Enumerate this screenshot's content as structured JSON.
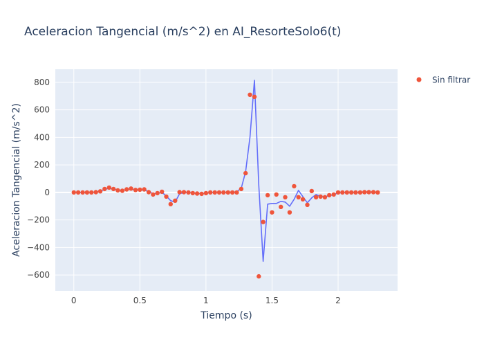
{
  "chart_data": {
    "type": "scatter",
    "title": "Aceleracion Tangencial (m/s^2) en AI_ResorteSolo6(t)",
    "xlabel": "Tiempo (s)",
    "ylabel": "Aceleracion Tangencial (m/s^2)",
    "xlim": [
      -0.14,
      2.45
    ],
    "ylim": [
      -715,
      895
    ],
    "x_ticks": [
      0,
      0.5,
      1,
      1.5,
      2
    ],
    "x_tick_labels": [
      "0",
      "0.5",
      "1",
      "1.5",
      "2"
    ],
    "y_ticks": [
      -600,
      -400,
      -200,
      0,
      200,
      400,
      600,
      800
    ],
    "y_tick_labels": [
      "−600",
      "−400",
      "−200",
      "0",
      "200",
      "400",
      "600",
      "800"
    ],
    "grid": true,
    "legend_position": "top-right",
    "colors": {
      "plot_bg": "#e5ecf6",
      "grid": "#ffffff",
      "markers": "#ef553b",
      "line": "#636efa",
      "text": "#2a3f5f",
      "tick_text": "#444444"
    },
    "series": [
      {
        "name": "Sin filtrar",
        "mode": "markers",
        "x": [
          0.0,
          0.033,
          0.067,
          0.1,
          0.133,
          0.167,
          0.2,
          0.233,
          0.267,
          0.3,
          0.333,
          0.367,
          0.4,
          0.433,
          0.467,
          0.5,
          0.533,
          0.567,
          0.6,
          0.633,
          0.667,
          0.7,
          0.733,
          0.767,
          0.8,
          0.833,
          0.867,
          0.9,
          0.933,
          0.967,
          1.0,
          1.033,
          1.067,
          1.1,
          1.133,
          1.167,
          1.2,
          1.233,
          1.267,
          1.3,
          1.333,
          1.367,
          1.4,
          1.433,
          1.467,
          1.5,
          1.533,
          1.567,
          1.6,
          1.633,
          1.667,
          1.7,
          1.733,
          1.767,
          1.8,
          1.833,
          1.867,
          1.9,
          1.933,
          1.967,
          2.0,
          2.033,
          2.067,
          2.1,
          2.133,
          2.167,
          2.2,
          2.233,
          2.267,
          2.3
        ],
        "y": [
          0,
          0,
          0,
          0,
          0,
          2,
          8,
          25,
          35,
          25,
          15,
          12,
          22,
          28,
          18,
          20,
          22,
          2,
          -15,
          -5,
          5,
          -30,
          -85,
          -60,
          2,
          2,
          0,
          -5,
          -8,
          -10,
          -5,
          0,
          0,
          0,
          0,
          0,
          0,
          0,
          25,
          140,
          710,
          695,
          -610,
          -215,
          -20,
          -145,
          -15,
          -105,
          -35,
          -145,
          45,
          -35,
          -50,
          -90,
          10,
          -35,
          -30,
          -35,
          -20,
          -15,
          0,
          0,
          0,
          0,
          0,
          0,
          2,
          2,
          2,
          0
        ]
      },
      {
        "mode": "lines",
        "x": [
          0.0,
          0.033,
          0.067,
          0.1,
          0.133,
          0.167,
          0.2,
          0.233,
          0.267,
          0.3,
          0.333,
          0.367,
          0.4,
          0.433,
          0.467,
          0.5,
          0.533,
          0.567,
          0.6,
          0.633,
          0.667,
          0.7,
          0.733,
          0.767,
          0.8,
          0.833,
          0.867,
          0.9,
          0.933,
          0.967,
          1.0,
          1.033,
          1.067,
          1.1,
          1.133,
          1.167,
          1.2,
          1.233,
          1.267,
          1.3,
          1.333,
          1.367,
          1.4,
          1.433,
          1.467,
          1.5,
          1.533,
          1.567,
          1.6,
          1.633,
          1.667,
          1.7,
          1.733,
          1.767,
          1.8,
          1.833,
          1.867,
          1.9,
          1.933,
          1.967,
          2.0,
          2.033,
          2.067,
          2.1,
          2.133,
          2.167,
          2.2,
          2.233,
          2.267,
          2.3
        ],
        "y": [
          0,
          0,
          0,
          0,
          0,
          2,
          8,
          22,
          30,
          25,
          18,
          15,
          20,
          24,
          18,
          18,
          18,
          5,
          -8,
          -5,
          0,
          -25,
          -60,
          -70,
          -10,
          0,
          0,
          -3,
          -6,
          -8,
          -5,
          0,
          0,
          0,
          0,
          0,
          0,
          5,
          30,
          150,
          400,
          815,
          50,
          -500,
          -85,
          -80,
          -80,
          -65,
          -70,
          -100,
          -50,
          15,
          -30,
          -75,
          -40,
          -15,
          -30,
          -30,
          -25,
          -15,
          -5,
          0,
          0,
          0,
          0,
          0,
          2,
          2,
          1,
          0
        ]
      }
    ]
  }
}
